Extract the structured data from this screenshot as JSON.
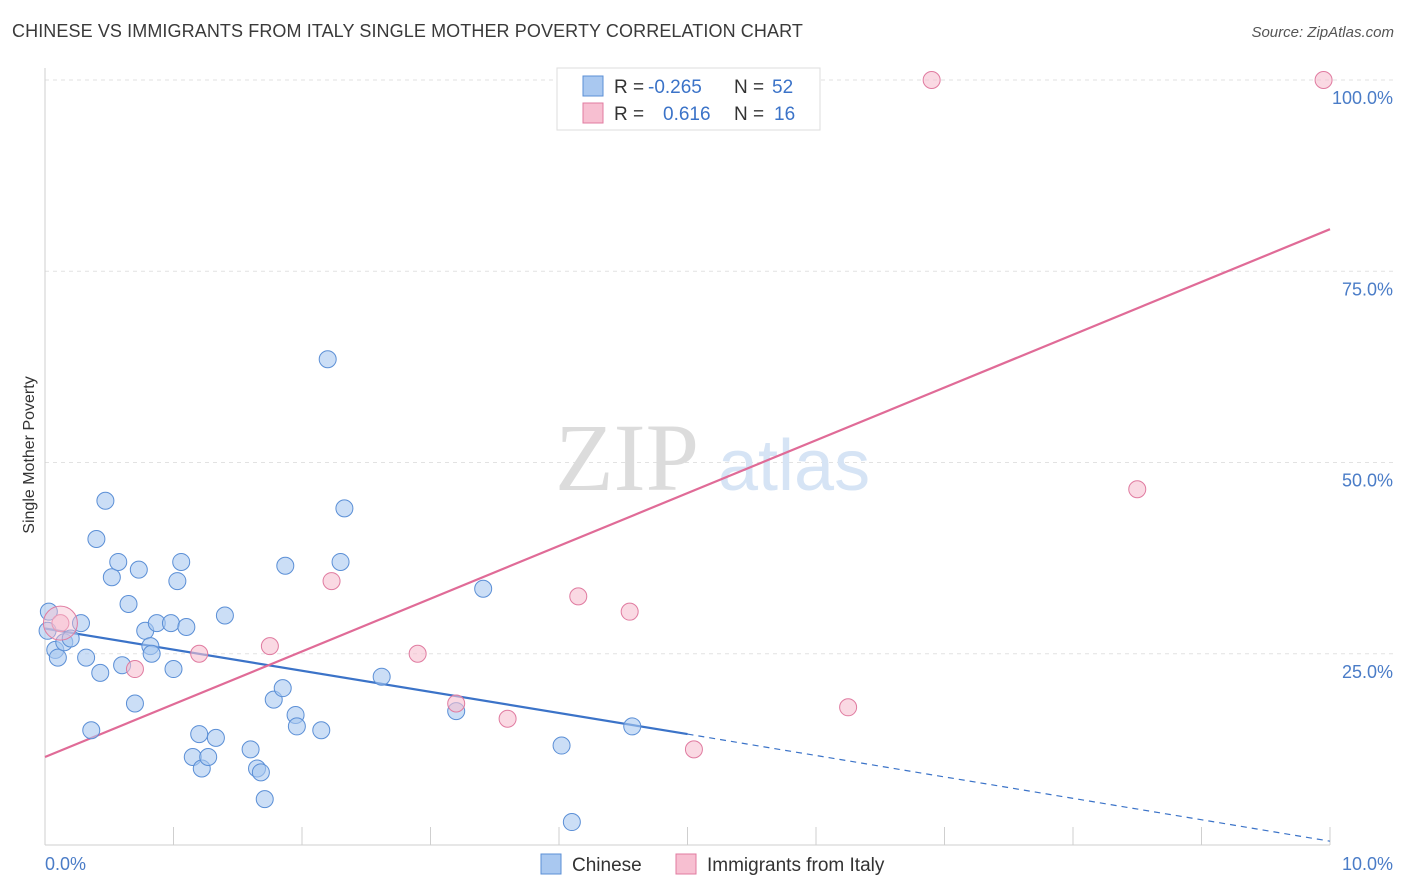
{
  "title": "CHINESE VS IMMIGRANTS FROM ITALY SINGLE MOTHER POVERTY CORRELATION CHART",
  "source": "Source: ZipAtlas.com",
  "watermark": {
    "zip": "ZIP",
    "atlas": "atlas"
  },
  "legend": {
    "rows": [
      {
        "r_label": "R =",
        "r_value": "-0.265",
        "n_label": "N =",
        "n_value": "52",
        "color": "#a9c8f0",
        "stroke": "#5b8fd6"
      },
      {
        "r_label": "R =",
        "r_value": "0.616",
        "n_label": "N =",
        "n_value": "16",
        "color": "#f7bfd1",
        "stroke": "#e07ba0"
      }
    ]
  },
  "bottom_legend": [
    "Chinese",
    "Immigrants from Italy"
  ],
  "chart_data": {
    "type": "scatter",
    "title": "CHINESE VS IMMIGRANTS FROM ITALY SINGLE MOTHER POVERTY CORRELATION CHART",
    "xlabel": "",
    "ylabel": "Single Mother Poverty",
    "xlim": [
      0,
      10
    ],
    "ylim": [
      0,
      100
    ],
    "x_tick_labels": [
      "0.0%",
      "10.0%"
    ],
    "y_ticks": [
      25,
      50,
      75,
      100
    ],
    "y_tick_labels": [
      "25.0%",
      "50.0%",
      "75.0%",
      "100.0%"
    ],
    "grid": true,
    "legend_position": "top-center",
    "series": [
      {
        "name": "Chinese",
        "color": "#a9c8f0",
        "stroke": "#5b8fd6",
        "points": [
          [
            0.03,
            30.5
          ],
          [
            0.08,
            25.5
          ],
          [
            0.1,
            24.5
          ],
          [
            0.15,
            26.5
          ],
          [
            0.2,
            27
          ],
          [
            0.28,
            29
          ],
          [
            0.32,
            24.5
          ],
          [
            0.36,
            15
          ],
          [
            0.4,
            40
          ],
          [
            0.43,
            22.5
          ],
          [
            0.47,
            45
          ],
          [
            0.52,
            35
          ],
          [
            0.57,
            37
          ],
          [
            0.6,
            23.5
          ],
          [
            0.65,
            31.5
          ],
          [
            0.7,
            18.5
          ],
          [
            0.73,
            36
          ],
          [
            0.78,
            28
          ],
          [
            0.82,
            26
          ],
          [
            0.83,
            25
          ],
          [
            0.87,
            29
          ],
          [
            0.98,
            29
          ],
          [
            1.0,
            23
          ],
          [
            1.03,
            34.5
          ],
          [
            1.06,
            37
          ],
          [
            1.1,
            28.5
          ],
          [
            1.15,
            11.5
          ],
          [
            1.2,
            14.5
          ],
          [
            1.22,
            10
          ],
          [
            1.27,
            11.5
          ],
          [
            1.33,
            14
          ],
          [
            1.4,
            30
          ],
          [
            1.6,
            12.5
          ],
          [
            1.65,
            10
          ],
          [
            1.68,
            9.5
          ],
          [
            1.71,
            6
          ],
          [
            1.78,
            19
          ],
          [
            1.85,
            20.5
          ],
          [
            1.87,
            36.5
          ],
          [
            1.95,
            17
          ],
          [
            1.96,
            15.5
          ],
          [
            2.2,
            63.5
          ],
          [
            2.15,
            15
          ],
          [
            2.3,
            37
          ],
          [
            2.33,
            44
          ],
          [
            2.62,
            22
          ],
          [
            3.2,
            17.5
          ],
          [
            3.41,
            33.5
          ],
          [
            4.02,
            13
          ],
          [
            4.1,
            3
          ],
          [
            4.57,
            15.5
          ],
          [
            0.02,
            28
          ]
        ]
      },
      {
        "name": "Immigrants from Italy",
        "color": "#f7bfd1",
        "stroke": "#e07ba0",
        "points": [
          [
            0.12,
            29
          ],
          [
            0.7,
            23
          ],
          [
            1.2,
            25
          ],
          [
            1.75,
            26
          ],
          [
            2.23,
            34.5
          ],
          [
            2.9,
            25
          ],
          [
            3.2,
            18.5
          ],
          [
            3.6,
            16.5
          ],
          [
            4.15,
            32.5
          ],
          [
            4.55,
            30.5
          ],
          [
            5.05,
            12.5
          ],
          [
            6.25,
            18
          ],
          [
            5.5,
            100
          ],
          [
            6.9,
            100
          ],
          [
            8.5,
            46.5
          ],
          [
            9.95,
            100
          ]
        ]
      }
    ],
    "trendlines": [
      {
        "series": "Chinese",
        "x": [
          0,
          5
        ],
        "y": [
          28.3,
          14.5
        ],
        "dashed_to": [
          10,
          0.5
        ]
      },
      {
        "series": "Immigrants from Italy",
        "x": [
          0,
          10
        ],
        "y": [
          11.5,
          80.5
        ]
      }
    ]
  }
}
